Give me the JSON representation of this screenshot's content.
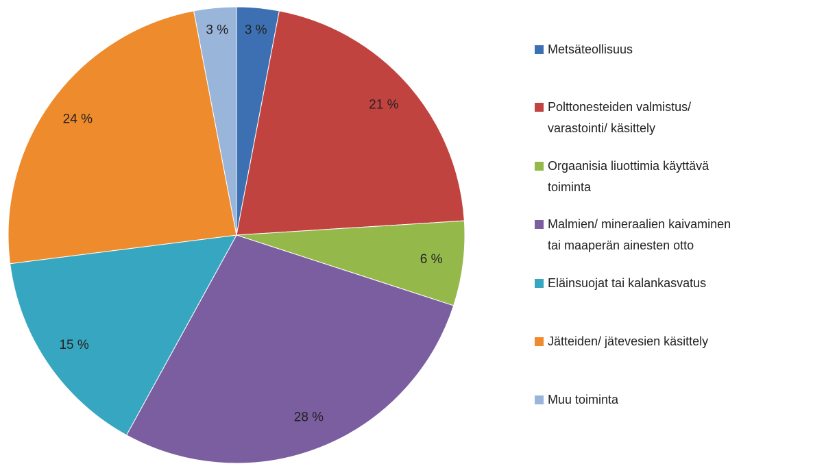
{
  "chart_data": {
    "type": "pie",
    "categories": [
      "Metsäteollisuus",
      "Polttonesteiden valmistus/\nvarastointi/ käsittely",
      "Orgaanisia liuottimia käyttävä\ntoiminta",
      "Malmien/ mineraalien kaivaminen\ntai maaperän ainesten otto",
      "Eläinsuojat tai kalankasvatus",
      "Jätteiden/ jätevesien käsittely",
      "Muu toiminta"
    ],
    "values": [
      3,
      21,
      6,
      28,
      15,
      24,
      3
    ],
    "value_labels": [
      "3 %",
      "21 %",
      "6 %",
      "28 %",
      "15 %",
      "24 %",
      "3 %"
    ],
    "colors": [
      "#3c70b2",
      "#c1433f",
      "#95b84b",
      "#7b5e9f",
      "#37a7c1",
      "#ee8b2d",
      "#9ab5da"
    ],
    "legend": "right"
  }
}
